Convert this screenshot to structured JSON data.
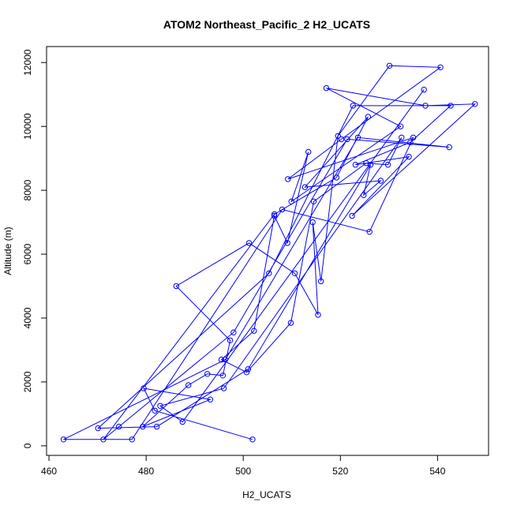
{
  "chart_data": {
    "type": "line",
    "title": "ATOM2 Northeast_Pacific_2 H2_UCATS",
    "xlabel": "H2_UCATS",
    "ylabel": "Altitude (m)",
    "xlim": [
      459.5,
      550.5
    ],
    "ylim": [
      -300,
      12500
    ],
    "xticks": [
      460,
      480,
      500,
      520,
      540
    ],
    "yticks": [
      0,
      2000,
      4000,
      6000,
      8000,
      10000,
      12000
    ],
    "grid": false,
    "legend": "none",
    "point_style": "open-circle",
    "color": "#0000ff",
    "series": [
      {
        "x": [
          501.9,
          481.8,
          479.5,
          493.2,
          479.3,
          488.7,
          492.6,
          495.8,
          497.3,
          486.2,
          501.2,
          510.6,
          515.4,
          514.3,
          516.0,
          519.5,
          530.1,
          540.6,
          520.2,
          509.2,
          535.0,
          526.0,
          508.0,
          477.1,
          463.0,
          496.3,
          523.6,
          542.4,
          521.4,
          498.0,
          474.4,
          471.2,
          506.4,
          519.2,
          525.7,
          512.7,
          528.3,
          524.8,
          526.2,
          501.0,
          482.2,
          470.1,
          505.3,
          522.6,
          542.7,
          534.4,
          523.1,
          534.1,
          522.4,
          547.7,
          537.5,
          517.1,
          532.4,
          509.9,
          513.4,
          509.1,
          506.4,
          502.2,
          495.5,
          500.7,
          509.8,
          514.5,
          525.3,
          529.8,
          532.6,
          496.0,
          482.9,
          487.5,
          537.2
        ],
        "y": [
          200,
          1100,
          1800,
          1450,
          600,
          1900,
          2250,
          2200,
          3300,
          5000,
          6350,
          5400,
          4100,
          7000,
          5150,
          9700,
          11900,
          11850,
          9600,
          8350,
          9650,
          6700,
          7400,
          200,
          200,
          2700,
          9650,
          9350,
          9600,
          3550,
          600,
          200,
          7250,
          8400,
          10300,
          8100,
          8300,
          7850,
          8800,
          2400,
          600,
          550,
          5400,
          10650,
          10650,
          9500,
          8800,
          9050,
          7200,
          10700,
          10650,
          11200,
          10000,
          7650,
          9200,
          6350,
          7200,
          3600,
          2700,
          2300,
          3850,
          7650,
          8850,
          8800,
          9650,
          1800,
          1250,
          750,
          11150
        ]
      }
    ]
  }
}
